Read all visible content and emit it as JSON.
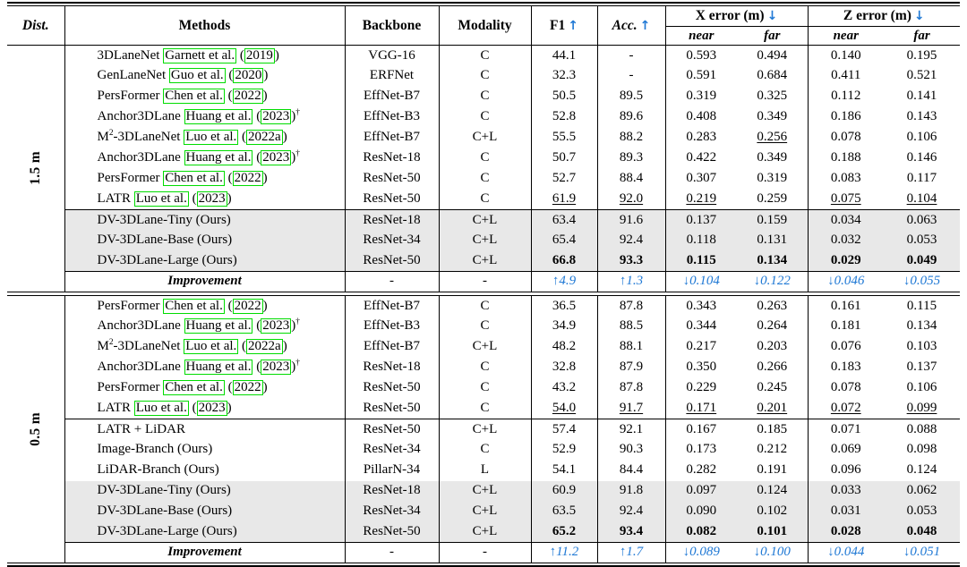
{
  "table": {
    "colors": {
      "accent_blue": "#2079d5",
      "citation_green": "#00dc00",
      "ours_row_bg": "#e8e8e8"
    },
    "header": {
      "dist": "Dist.",
      "methods": "Methods",
      "backbone": "Backbone",
      "modality": "Modality",
      "f1": "F1",
      "acc": "Acc.",
      "x_error": "X error (m)",
      "z_error": "Z error (m)",
      "near": "near",
      "far": "far",
      "up_arrow": "↑",
      "down_arrow": "↓"
    },
    "sections": [
      {
        "dist_label": "1.5 m",
        "rows": [
          {
            "type": "data",
            "method": [
              {
                "text": "3DLaneNet "
              },
              {
                "box": "Garnett et al."
              },
              {
                "text": " ("
              },
              {
                "box": "2019"
              },
              {
                "text": ")"
              }
            ],
            "backbone": "VGG-16",
            "modality": "C",
            "values": [
              "44.1",
              "-",
              "0.593",
              "0.494",
              "0.140",
              "0.195"
            ]
          },
          {
            "type": "data",
            "method": [
              {
                "text": "GenLaneNet "
              },
              {
                "box": "Guo et al."
              },
              {
                "text": " ("
              },
              {
                "box": "2020"
              },
              {
                "text": ")"
              }
            ],
            "backbone": "ERFNet",
            "modality": "C",
            "values": [
              "32.3",
              "-",
              "0.591",
              "0.684",
              "0.411",
              "0.521"
            ]
          },
          {
            "type": "data",
            "method": [
              {
                "text": "PersFormer "
              },
              {
                "box": "Chen et al."
              },
              {
                "text": " ("
              },
              {
                "box": "2022"
              },
              {
                "text": ")"
              }
            ],
            "backbone": "EffNet-B7",
            "modality": "C",
            "values": [
              "50.5",
              "89.5",
              "0.319",
              "0.325",
              "0.112",
              "0.141"
            ]
          },
          {
            "type": "data",
            "method": [
              {
                "text": "Anchor3DLane "
              },
              {
                "box": "Huang et al."
              },
              {
                "text": " ("
              },
              {
                "box": "2023"
              },
              {
                "text": ")"
              },
              {
                "sup": "†"
              }
            ],
            "backbone": "EffNet-B3",
            "modality": "C",
            "values": [
              "52.8",
              "89.6",
              "0.408",
              "0.349",
              "0.186",
              "0.143"
            ]
          },
          {
            "type": "data",
            "method": [
              {
                "text": "M"
              },
              {
                "sup": "2"
              },
              {
                "text": "-3DLaneNet "
              },
              {
                "box": "Luo et al."
              },
              {
                "text": " ("
              },
              {
                "box": "2022a"
              },
              {
                "text": ")"
              }
            ],
            "backbone": "EffNet-B7",
            "modality": "C+L",
            "values": [
              "55.5",
              "88.2",
              "0.283",
              "0.256",
              "0.078",
              "0.106"
            ],
            "underline": [
              false,
              false,
              false,
              true,
              false,
              false
            ]
          },
          {
            "type": "data",
            "method": [
              {
                "text": "Anchor3DLane "
              },
              {
                "box": "Huang et al."
              },
              {
                "text": " ("
              },
              {
                "box": "2023"
              },
              {
                "text": ")"
              },
              {
                "sup": "†"
              }
            ],
            "backbone": "ResNet-18",
            "modality": "C",
            "values": [
              "50.7",
              "89.3",
              "0.422",
              "0.349",
              "0.188",
              "0.146"
            ]
          },
          {
            "type": "data",
            "method": [
              {
                "text": "PersFormer "
              },
              {
                "box": "Chen et al."
              },
              {
                "text": " ("
              },
              {
                "box": "2022"
              },
              {
                "text": ")"
              }
            ],
            "backbone": "ResNet-50",
            "modality": "C",
            "values": [
              "52.7",
              "88.4",
              "0.307",
              "0.319",
              "0.083",
              "0.117"
            ]
          },
          {
            "type": "data",
            "method": [
              {
                "text": "LATR "
              },
              {
                "box": "Luo et al."
              },
              {
                "text": " ("
              },
              {
                "box": "2023"
              },
              {
                "text": ")"
              }
            ],
            "backbone": "ResNet-50",
            "modality": "C",
            "values": [
              "61.9",
              "92.0",
              "0.219",
              "0.259",
              "0.075",
              "0.104"
            ],
            "underline": [
              true,
              true,
              true,
              false,
              true,
              true
            ]
          },
          {
            "type": "data",
            "shade": true,
            "rule_above": true,
            "method": [
              {
                "text": "DV-3DLane-Tiny (Ours)"
              }
            ],
            "backbone": "ResNet-18",
            "modality": "C+L",
            "values": [
              "63.4",
              "91.6",
              "0.137",
              "0.159",
              "0.034",
              "0.063"
            ]
          },
          {
            "type": "data",
            "shade": true,
            "method": [
              {
                "text": "DV-3DLane-Base (Ours)"
              }
            ],
            "backbone": "ResNet-34",
            "modality": "C+L",
            "values": [
              "65.4",
              "92.4",
              "0.118",
              "0.131",
              "0.032",
              "0.053"
            ]
          },
          {
            "type": "data",
            "shade": true,
            "bold": true,
            "method": [
              {
                "text": "DV-3DLane-Large (Ours)"
              }
            ],
            "backbone": "ResNet-50",
            "modality": "C+L",
            "values": [
              "66.8",
              "93.3",
              "0.115",
              "0.134",
              "0.029",
              "0.049"
            ]
          },
          {
            "type": "improvement",
            "rule_above": true,
            "method": [
              {
                "text": "Improvement"
              }
            ],
            "backbone": "-",
            "modality": "-",
            "values": [
              "↑4.9",
              "↑1.3",
              "↓0.104",
              "↓0.122",
              "↓0.046",
              "↓0.055"
            ]
          }
        ]
      },
      {
        "dist_label": "0.5 m",
        "rows": [
          {
            "type": "data",
            "method": [
              {
                "text": "PersFormer "
              },
              {
                "box": "Chen et al."
              },
              {
                "text": " ("
              },
              {
                "box": "2022"
              },
              {
                "text": ")"
              }
            ],
            "backbone": "EffNet-B7",
            "modality": "C",
            "values": [
              "36.5",
              "87.8",
              "0.343",
              "0.263",
              "0.161",
              "0.115"
            ]
          },
          {
            "type": "data",
            "method": [
              {
                "text": "Anchor3DLane "
              },
              {
                "box": "Huang et al."
              },
              {
                "text": " ("
              },
              {
                "box": "2023"
              },
              {
                "text": ")"
              },
              {
                "sup": "†"
              }
            ],
            "backbone": "EffNet-B3",
            "modality": "C",
            "values": [
              "34.9",
              "88.5",
              "0.344",
              "0.264",
              "0.181",
              "0.134"
            ]
          },
          {
            "type": "data",
            "method": [
              {
                "text": "M"
              },
              {
                "sup": "2"
              },
              {
                "text": "-3DLaneNet "
              },
              {
                "box": "Luo et al."
              },
              {
                "text": " ("
              },
              {
                "box": "2022a"
              },
              {
                "text": ")"
              }
            ],
            "backbone": "EffNet-B7",
            "modality": "C+L",
            "values": [
              "48.2",
              "88.1",
              "0.217",
              "0.203",
              "0.076",
              "0.103"
            ]
          },
          {
            "type": "data",
            "method": [
              {
                "text": "Anchor3DLane "
              },
              {
                "box": "Huang et al."
              },
              {
                "text": " ("
              },
              {
                "box": "2023"
              },
              {
                "text": ")"
              },
              {
                "sup": "†"
              }
            ],
            "backbone": "ResNet-18",
            "modality": "C",
            "values": [
              "32.8",
              "87.9",
              "0.350",
              "0.266",
              "0.183",
              "0.137"
            ]
          },
          {
            "type": "data",
            "method": [
              {
                "text": "PersFormer "
              },
              {
                "box": "Chen et al."
              },
              {
                "text": " ("
              },
              {
                "box": "2022"
              },
              {
                "text": ")"
              }
            ],
            "backbone": "ResNet-50",
            "modality": "C",
            "values": [
              "43.2",
              "87.8",
              "0.229",
              "0.245",
              "0.078",
              "0.106"
            ]
          },
          {
            "type": "data",
            "method": [
              {
                "text": "LATR "
              },
              {
                "box": "Luo et al."
              },
              {
                "text": " ("
              },
              {
                "box": "2023"
              },
              {
                "text": ")"
              }
            ],
            "backbone": "ResNet-50",
            "modality": "C",
            "values": [
              "54.0",
              "91.7",
              "0.171",
              "0.201",
              "0.072",
              "0.099"
            ],
            "underline": [
              true,
              true,
              true,
              true,
              true,
              true
            ]
          },
          {
            "type": "data",
            "rule_above": true,
            "method": [
              {
                "text": "LATR + LiDAR"
              }
            ],
            "backbone": "ResNet-50",
            "modality": "C+L",
            "values": [
              "57.4",
              "92.1",
              "0.167",
              "0.185",
              "0.071",
              "0.088"
            ]
          },
          {
            "type": "data",
            "method": [
              {
                "text": "Image-Branch (Ours)"
              }
            ],
            "backbone": "ResNet-34",
            "modality": "C",
            "values": [
              "52.9",
              "90.3",
              "0.173",
              "0.212",
              "0.069",
              "0.098"
            ]
          },
          {
            "type": "data",
            "method": [
              {
                "text": "LiDAR-Branch (Ours)"
              }
            ],
            "backbone": "PillarN-34",
            "modality": "L",
            "values": [
              "54.1",
              "84.4",
              "0.282",
              "0.191",
              "0.096",
              "0.124"
            ]
          },
          {
            "type": "data",
            "shade": true,
            "method": [
              {
                "text": "DV-3DLane-Tiny (Ours)"
              }
            ],
            "backbone": "ResNet-18",
            "modality": "C+L",
            "values": [
              "60.9",
              "91.8",
              "0.097",
              "0.124",
              "0.033",
              "0.062"
            ]
          },
          {
            "type": "data",
            "shade": true,
            "method": [
              {
                "text": "DV-3DLane-Base (Ours)"
              }
            ],
            "backbone": "ResNet-34",
            "modality": "C+L",
            "values": [
              "63.5",
              "92.4",
              "0.090",
              "0.102",
              "0.031",
              "0.053"
            ]
          },
          {
            "type": "data",
            "shade": true,
            "bold": true,
            "method": [
              {
                "text": "DV-3DLane-Large (Ours)"
              }
            ],
            "backbone": "ResNet-50",
            "modality": "C+L",
            "values": [
              "65.2",
              "93.4",
              "0.082",
              "0.101",
              "0.028",
              "0.048"
            ]
          },
          {
            "type": "improvement",
            "rule_above": true,
            "method": [
              {
                "text": "Improvement"
              }
            ],
            "backbone": "-",
            "modality": "-",
            "values": [
              "↑11.2",
              "↑1.7",
              "↓0.089",
              "↓0.100",
              "↓0.044",
              "↓0.051"
            ]
          }
        ]
      }
    ]
  }
}
